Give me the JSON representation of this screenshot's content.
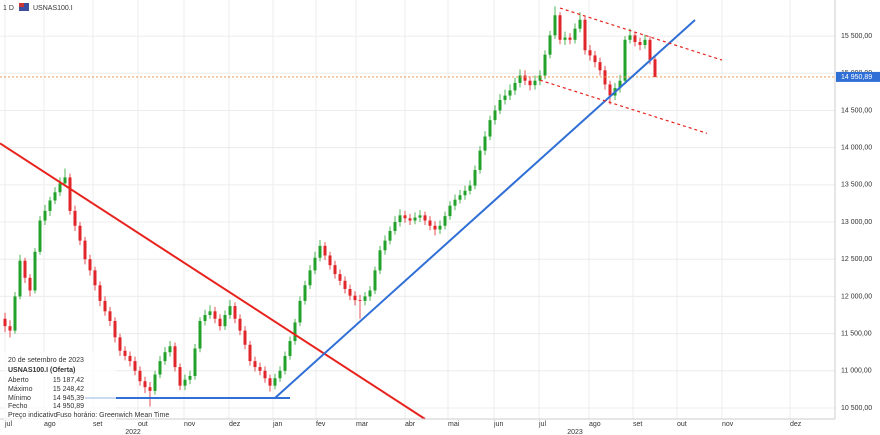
{
  "chart_data": {
    "type": "candlestick",
    "interval": "1 D",
    "symbol": "USNAS100.I",
    "up_color": "#22a22a",
    "down_color": "#e0262a",
    "ylim": [
      10352,
      15985
    ],
    "yticks": [
      {
        "value": 10500,
        "label": "10 500,00"
      },
      {
        "value": 11000,
        "label": "11 000,00"
      },
      {
        "value": 11500,
        "label": "11 500,00"
      },
      {
        "value": 12000,
        "label": "12 000,00"
      },
      {
        "value": 12500,
        "label": "12 500,00"
      },
      {
        "value": 13000,
        "label": "13 000,00"
      },
      {
        "value": 13500,
        "label": "13 500,00"
      },
      {
        "value": 14000,
        "label": "14 000,00"
      },
      {
        "value": 14500,
        "label": "14 500,00"
      },
      {
        "value": 15000,
        "label": "15 000,00"
      },
      {
        "value": 15500,
        "label": "15 500,00"
      }
    ],
    "xlim": [
      -1,
      166
    ],
    "xticks": [
      {
        "value": 0,
        "label": "jul"
      },
      {
        "value": 7.8,
        "label": "ago"
      },
      {
        "value": 17.6,
        "label": "set"
      },
      {
        "value": 26.6,
        "label": "out"
      },
      {
        "value": 35.8,
        "label": "nov"
      },
      {
        "value": 44.8,
        "label": "dez"
      },
      {
        "value": 53.6,
        "label": "jan"
      },
      {
        "value": 62.2,
        "label": "fev"
      },
      {
        "value": 70.2,
        "label": "mar"
      },
      {
        "value": 80,
        "label": "abr"
      },
      {
        "value": 88.6,
        "label": "mai"
      },
      {
        "value": 97.8,
        "label": "jun"
      },
      {
        "value": 106.8,
        "label": "jul"
      },
      {
        "value": 116.8,
        "label": "ago"
      },
      {
        "value": 125.6,
        "label": "set"
      },
      {
        "value": 134.4,
        "label": "out"
      },
      {
        "value": 143.4,
        "label": "nov"
      },
      {
        "value": 157,
        "label": "dez"
      }
    ],
    "year_ticks": [
      {
        "value": 25.6,
        "label": "2022"
      },
      {
        "value": 114,
        "label": "2023"
      }
    ],
    "grid": true,
    "last_price": {
      "value": 14950.89,
      "label": "14 950,89",
      "color": "#f08a3c"
    },
    "trendlines": [
      {
        "color": "#e8231e",
        "dash": false,
        "points": [
          [
            -1,
            14058
          ],
          [
            84,
            10352
          ]
        ]
      },
      {
        "color": "#2f6fd6",
        "dash": false,
        "points": [
          [
            16,
            10635
          ],
          [
            57,
            10635
          ]
        ]
      },
      {
        "color": "#2f6fd6",
        "dash": false,
        "points": [
          [
            54,
            10635
          ],
          [
            138,
            15716
          ]
        ]
      },
      {
        "color": "#e8231e",
        "dash": true,
        "points": [
          [
            111,
            15877
          ],
          [
            143.4,
            15177
          ]
        ]
      },
      {
        "color": "#e8231e",
        "dash": true,
        "points": [
          [
            107,
            14907
          ],
          [
            140.4,
            14193
          ]
        ]
      }
    ],
    "ohlc": [
      [
        11700,
        11780,
        11520,
        11600
      ],
      [
        11600,
        11680,
        11450,
        11540
      ],
      [
        11540,
        12060,
        11500,
        12000
      ],
      [
        12000,
        12560,
        11960,
        12480
      ],
      [
        12480,
        12520,
        12180,
        12250
      ],
      [
        12250,
        12300,
        12000,
        12080
      ],
      [
        12080,
        12650,
        12040,
        12600
      ],
      [
        12600,
        13080,
        12560,
        13020
      ],
      [
        13020,
        13230,
        12960,
        13150
      ],
      [
        13150,
        13340,
        13080,
        13290
      ],
      [
        13290,
        13470,
        13240,
        13400
      ],
      [
        13400,
        13600,
        13350,
        13520
      ],
      [
        13520,
        13720,
        13480,
        13600
      ],
      [
        13600,
        13650,
        13100,
        13150
      ],
      [
        13150,
        13220,
        12880,
        12950
      ],
      [
        12950,
        13000,
        12690,
        12750
      ],
      [
        12750,
        12800,
        12430,
        12500
      ],
      [
        12500,
        12560,
        12280,
        12350
      ],
      [
        12350,
        12400,
        12080,
        12150
      ],
      [
        12150,
        12200,
        11870,
        11940
      ],
      [
        11940,
        12000,
        11740,
        11800
      ],
      [
        11800,
        11860,
        11600,
        11670
      ],
      [
        11670,
        11720,
        11380,
        11450
      ],
      [
        11450,
        11500,
        11200,
        11270
      ],
      [
        11270,
        11330,
        11140,
        11200
      ],
      [
        11200,
        11260,
        11060,
        11130
      ],
      [
        11130,
        11190,
        10940,
        11000
      ],
      [
        11000,
        11060,
        10800,
        10860
      ],
      [
        10860,
        10920,
        10700,
        10780
      ],
      [
        10780,
        10850,
        10520,
        10730
      ],
      [
        10730,
        11000,
        10680,
        10950
      ],
      [
        10950,
        11200,
        10900,
        11130
      ],
      [
        11130,
        11320,
        11080,
        11250
      ],
      [
        11250,
        11400,
        11190,
        11330
      ],
      [
        11330,
        11380,
        10990,
        11050
      ],
      [
        11050,
        11100,
        10740,
        10800
      ],
      [
        10800,
        10950,
        10740,
        10880
      ],
      [
        10880,
        11000,
        10820,
        10930
      ],
      [
        10930,
        11360,
        10880,
        11300
      ],
      [
        11300,
        11720,
        11250,
        11670
      ],
      [
        11670,
        11820,
        11610,
        11750
      ],
      [
        11750,
        11880,
        11700,
        11800
      ],
      [
        11800,
        11860,
        11640,
        11700
      ],
      [
        11700,
        11760,
        11540,
        11600
      ],
      [
        11600,
        11810,
        11550,
        11750
      ],
      [
        11750,
        11950,
        11700,
        11870
      ],
      [
        11870,
        11920,
        11640,
        11700
      ],
      [
        11700,
        11760,
        11480,
        11540
      ],
      [
        11540,
        11600,
        11290,
        11350
      ],
      [
        11350,
        11400,
        11070,
        11130
      ],
      [
        11130,
        11190,
        10990,
        11050
      ],
      [
        11050,
        11110,
        10940,
        11000
      ],
      [
        11000,
        11060,
        10840,
        10900
      ],
      [
        10900,
        10950,
        10720,
        10800
      ],
      [
        10800,
        10960,
        10750,
        10900
      ],
      [
        10900,
        11060,
        10850,
        11000
      ],
      [
        11000,
        11260,
        10950,
        11200
      ],
      [
        11200,
        11460,
        11150,
        11400
      ],
      [
        11400,
        11700,
        11350,
        11650
      ],
      [
        11650,
        12000,
        11600,
        11940
      ],
      [
        11940,
        12210,
        11890,
        12150
      ],
      [
        12150,
        12420,
        12100,
        12350
      ],
      [
        12350,
        12600,
        12300,
        12520
      ],
      [
        12520,
        12760,
        12470,
        12680
      ],
      [
        12680,
        12730,
        12490,
        12550
      ],
      [
        12550,
        12600,
        12360,
        12420
      ],
      [
        12420,
        12480,
        12240,
        12300
      ],
      [
        12300,
        12360,
        12150,
        12210
      ],
      [
        12210,
        12270,
        12040,
        12100
      ],
      [
        12100,
        12160,
        11950,
        12010
      ],
      [
        12010,
        12070,
        11880,
        11950
      ],
      [
        11950,
        12020,
        11700,
        11940
      ],
      [
        11940,
        12060,
        11880,
        12000
      ],
      [
        12000,
        12140,
        11940,
        12080
      ],
      [
        12080,
        12400,
        12030,
        12350
      ],
      [
        12350,
        12680,
        12300,
        12620
      ],
      [
        12620,
        12820,
        12560,
        12750
      ],
      [
        12750,
        12940,
        12700,
        12880
      ],
      [
        12880,
        13080,
        12830,
        13000
      ],
      [
        13000,
        13170,
        12940,
        13090
      ],
      [
        13090,
        13150,
        12990,
        13050
      ],
      [
        13050,
        13110,
        12960,
        13020
      ],
      [
        13020,
        13130,
        12970,
        13060
      ],
      [
        13060,
        13160,
        13000,
        13090
      ],
      [
        13090,
        13140,
        12960,
        13020
      ],
      [
        13020,
        13080,
        12890,
        12950
      ],
      [
        12950,
        13010,
        12820,
        12900
      ],
      [
        12900,
        13020,
        12840,
        12950
      ],
      [
        12950,
        13140,
        12900,
        13080
      ],
      [
        13080,
        13280,
        13030,
        13220
      ],
      [
        13220,
        13370,
        13160,
        13300
      ],
      [
        13300,
        13430,
        13250,
        13360
      ],
      [
        13360,
        13490,
        13300,
        13420
      ],
      [
        13420,
        13560,
        13370,
        13490
      ],
      [
        13490,
        13760,
        13440,
        13700
      ],
      [
        13700,
        14020,
        13650,
        13960
      ],
      [
        13960,
        14220,
        13900,
        14150
      ],
      [
        14150,
        14430,
        14100,
        14370
      ],
      [
        14370,
        14570,
        14310,
        14500
      ],
      [
        14500,
        14720,
        14450,
        14640
      ],
      [
        14640,
        14780,
        14580,
        14700
      ],
      [
        14700,
        14850,
        14640,
        14770
      ],
      [
        14770,
        14940,
        14710,
        14870
      ],
      [
        14870,
        15050,
        14810,
        14970
      ],
      [
        14970,
        15040,
        14840,
        14900
      ],
      [
        14900,
        14960,
        14770,
        14840
      ],
      [
        14840,
        14970,
        14780,
        14900
      ],
      [
        14900,
        15040,
        14840,
        14970
      ],
      [
        14970,
        15310,
        14920,
        15250
      ],
      [
        15250,
        15570,
        15200,
        15510
      ],
      [
        15510,
        15900,
        15460,
        15780
      ],
      [
        15780,
        15820,
        15390,
        15450
      ],
      [
        15450,
        15560,
        15380,
        15480
      ],
      [
        15480,
        15540,
        15390,
        15450
      ],
      [
        15450,
        15670,
        15400,
        15600
      ],
      [
        15600,
        15820,
        15550,
        15720
      ],
      [
        15720,
        15760,
        15250,
        15310
      ],
      [
        15310,
        15380,
        15170,
        15240
      ],
      [
        15240,
        15300,
        15080,
        15150
      ],
      [
        15150,
        15210,
        14970,
        15040
      ],
      [
        15040,
        15100,
        14780,
        14850
      ],
      [
        14850,
        14900,
        14580,
        14700
      ],
      [
        14700,
        14870,
        14640,
        14800
      ],
      [
        14800,
        14980,
        14740,
        14900
      ],
      [
        14900,
        15500,
        14850,
        15450
      ],
      [
        15450,
        15600,
        15400,
        15510
      ],
      [
        15510,
        15560,
        15360,
        15420
      ],
      [
        15420,
        15480,
        15310,
        15380
      ],
      [
        15380,
        15520,
        15330,
        15450
      ],
      [
        15450,
        15500,
        15120,
        15180
      ],
      [
        15187.42,
        15248.42,
        14945.39,
        14950.89
      ]
    ]
  },
  "info": {
    "date": "20 de setembro de 2023",
    "instrument": "USNAS100.I (Oferta)",
    "rows": [
      [
        "Aberto",
        "15 187,42"
      ],
      [
        "Máximo",
        "15 248,42"
      ],
      [
        "Mínimo",
        "14 945,39"
      ],
      [
        "Fecho",
        "14 950,89"
      ]
    ],
    "note": "Preço indicativo",
    "timezone": "Fuso horário: Greenwich Mean Time"
  }
}
